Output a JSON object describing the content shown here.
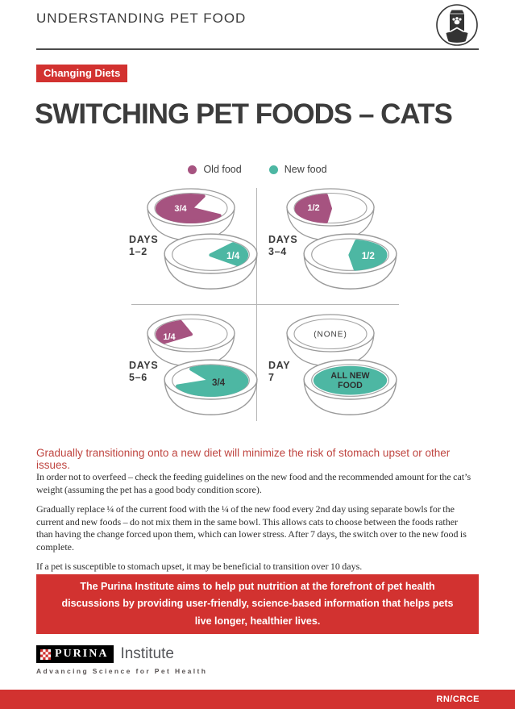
{
  "header": {
    "title": "UNDERSTANDING PET FOOD",
    "icon": "pet-food-bag-and-bowl"
  },
  "badge": {
    "label": "Changing Diets"
  },
  "page_title": "SWITCHING PET FOODS – CATS",
  "colors": {
    "old_food": "#a65380",
    "new_food": "#4db7a3",
    "brand_red": "#d23230",
    "highlight_red": "#bf4540"
  },
  "legend": {
    "items": [
      {
        "label": "Old food",
        "color": "#a65380"
      },
      {
        "label": "New food",
        "color": "#4db7a3"
      }
    ]
  },
  "diagram": {
    "quadrants": [
      {
        "label": "DAYS",
        "range": "1–2",
        "bowls": [
          {
            "food": "old",
            "amount": "3/4"
          },
          {
            "food": "new",
            "amount": "1/4"
          }
        ]
      },
      {
        "label": "DAYS",
        "range": "3–4",
        "bowls": [
          {
            "food": "old",
            "amount": "1/2"
          },
          {
            "food": "new",
            "amount": "1/2"
          }
        ]
      },
      {
        "label": "DAYS",
        "range": "5–6",
        "bowls": [
          {
            "food": "old",
            "amount": "1/4"
          },
          {
            "food": "new",
            "amount": "3/4"
          }
        ]
      },
      {
        "label": "DAY",
        "range": "7",
        "bowls": [
          {
            "food": "none",
            "amount": "(NONE)"
          },
          {
            "food": "new",
            "amount": "ALL NEW FOOD"
          }
        ]
      }
    ]
  },
  "highlight": "Gradually transitioning onto a new diet will minimize the risk of stomach upset or other issues.",
  "paragraphs": [
    "In order not to overfeed – check the feeding guidelines on the new food and the recommended amount for the cat’s weight (assuming the pet has a good body condition score).",
    "Gradually replace ¼ of the current food with the ¼ of the new food every 2nd day using separate bowls for the current and new foods – do not mix them in the same bowl. This allows cats to choose between the foods rather than having the change forced upon them, which can lower stress. After 7 days, the switch over to the new food is complete.",
    "If a pet is susceptible to stomach upset, it may be beneficial to transition over 10 days."
  ],
  "callout": "The Purina Institute aims to help put nutrition at the forefront of pet health discussions by providing user-friendly, science-based information that helps pets live longer, healthier lives.",
  "logo": {
    "brand": "PURINA",
    "suffix": "Institute",
    "tagline": "Advancing Science for Pet Health"
  },
  "footer": {
    "code": "RN/CRCE"
  }
}
